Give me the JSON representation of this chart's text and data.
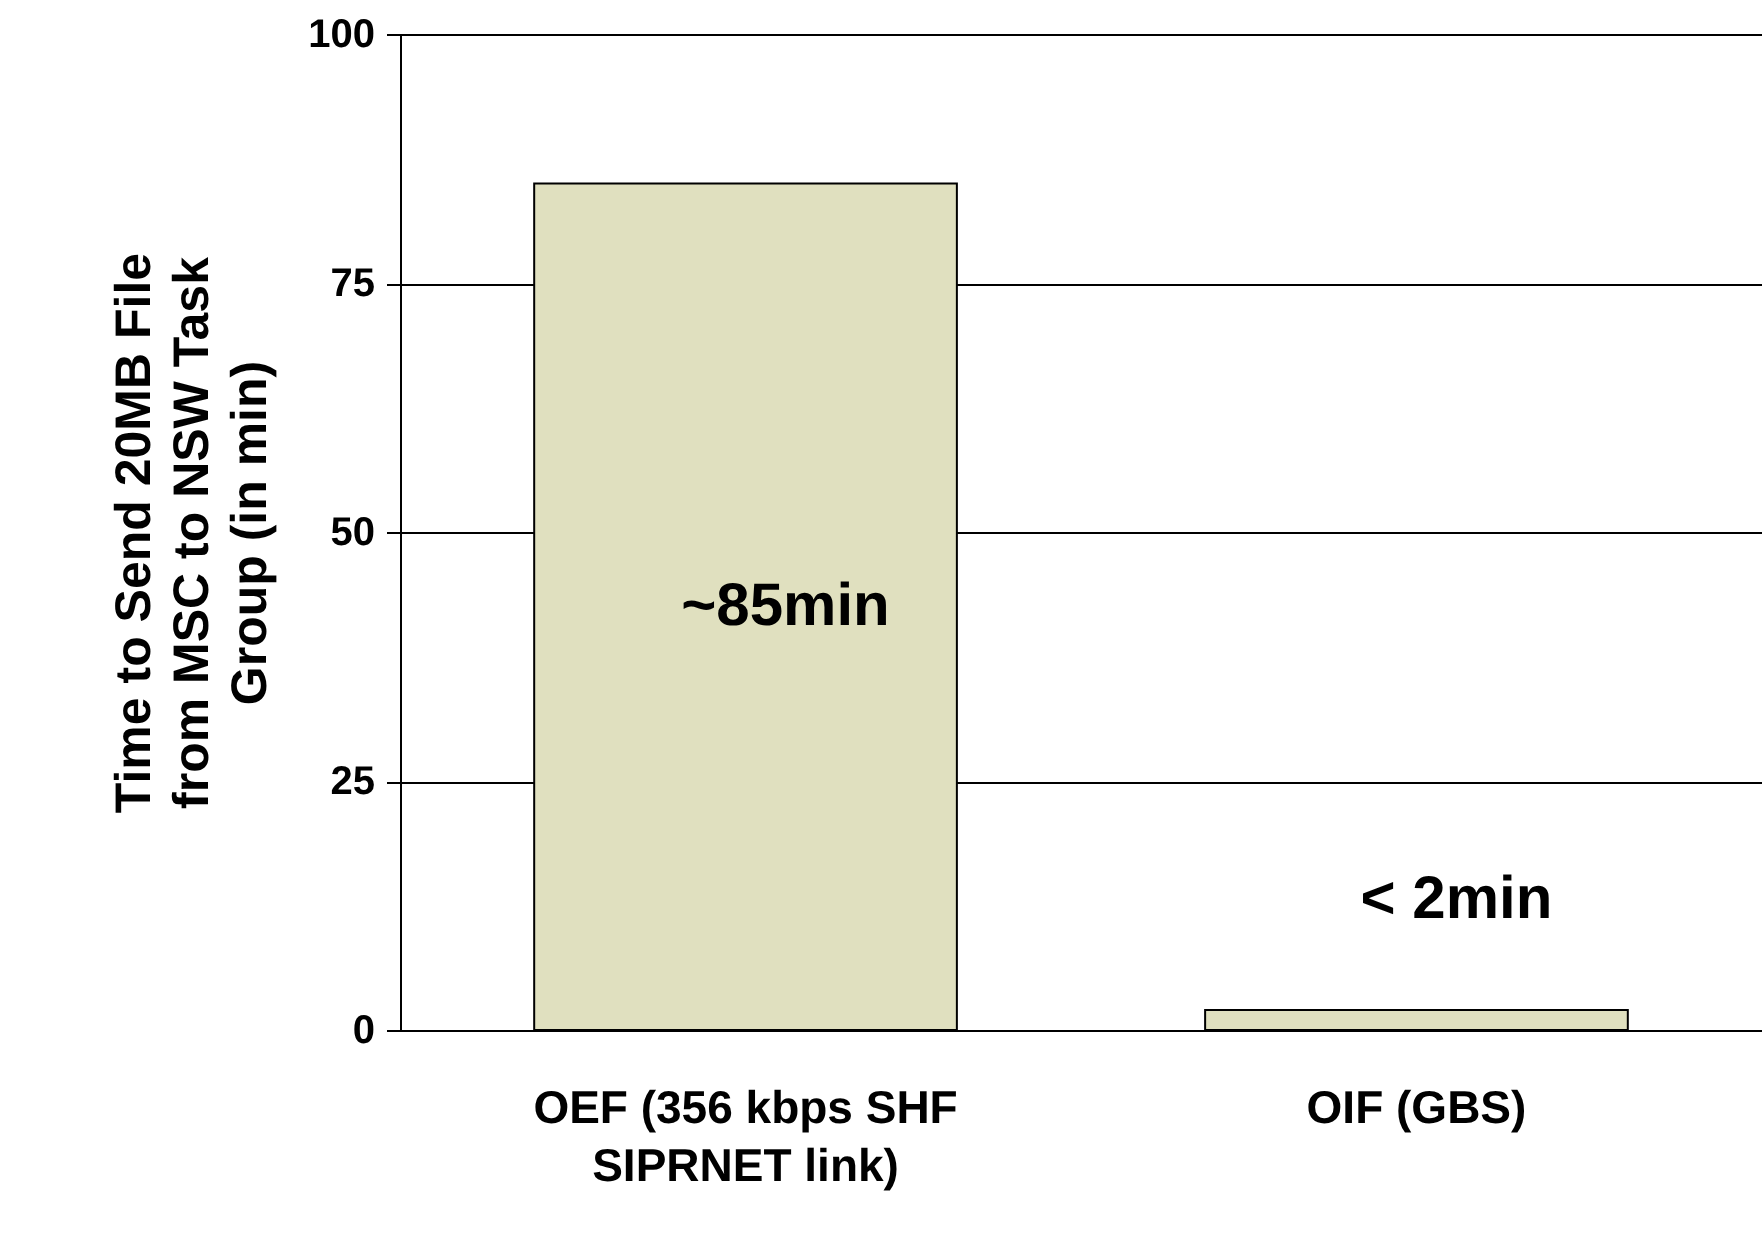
{
  "chart_data": {
    "type": "bar",
    "ylabel": "Time to Send 20MB File\nfrom MSC to NSW Task\nGroup (in min)",
    "categories": [
      "OEF (356 kbps SHF\nSIPRNET link)",
      "OIF (GBS)"
    ],
    "values": [
      85,
      2
    ],
    "value_labels": [
      "~85min",
      "< 2min"
    ],
    "color": "#e0e0bf",
    "ylim": [
      0,
      100
    ],
    "yticks": [
      0,
      25,
      50,
      75,
      100
    ],
    "grid": "y"
  }
}
